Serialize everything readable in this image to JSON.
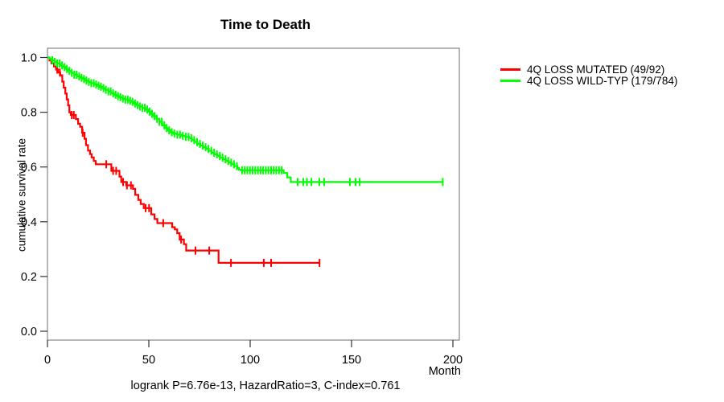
{
  "chart_data": {
    "type": "line",
    "subtype": "kaplan-meier-step-curves",
    "title": "Time to Death",
    "xlabel": "Month",
    "ylabel": "cumulative survival rate",
    "footer": "logrank P=6.76e-13, HazardRatio=3, C-index=0.761",
    "xlim": [
      0,
      203
    ],
    "ylim": [
      0,
      1
    ],
    "grid": false,
    "legend_position": "right",
    "xticks": [
      {
        "value": 0,
        "label": "0"
      },
      {
        "value": 50,
        "label": "50"
      },
      {
        "value": 100,
        "label": "100"
      },
      {
        "value": 150,
        "label": "150"
      },
      {
        "value": 200,
        "label": "200"
      }
    ],
    "yticks": [
      {
        "value": 0.0,
        "label": "0.0"
      },
      {
        "value": 0.2,
        "label": "0.2"
      },
      {
        "value": 0.4,
        "label": "0.4"
      },
      {
        "value": 0.6,
        "label": "0.6"
      },
      {
        "value": 0.8,
        "label": "0.8"
      },
      {
        "value": 1.0,
        "label": "1.0"
      }
    ],
    "series": [
      {
        "name": "4Q LOSS MUTATED (49/92)",
        "color": "#FF0000",
        "events": 49,
        "total": 92,
        "end_month": 134.2,
        "steps": [
          [
            0,
            1.0
          ],
          [
            1,
            0.989
          ],
          [
            2,
            0.978
          ],
          [
            3.2,
            0.967
          ],
          [
            4.2,
            0.956
          ],
          [
            5.2,
            0.945
          ],
          [
            6.3,
            0.935
          ],
          [
            7.3,
            0.912
          ],
          [
            8,
            0.89
          ],
          [
            8.8,
            0.868
          ],
          [
            9.5,
            0.847
          ],
          [
            10.2,
            0.825
          ],
          [
            10.8,
            0.8
          ],
          [
            11.5,
            0.79
          ],
          [
            14,
            0.775
          ],
          [
            15.1,
            0.758
          ],
          [
            16.1,
            0.747
          ],
          [
            17.1,
            0.725
          ],
          [
            18.3,
            0.703
          ],
          [
            19,
            0.68
          ],
          [
            20,
            0.66
          ],
          [
            21,
            0.647
          ],
          [
            21.8,
            0.635
          ],
          [
            22.8,
            0.622
          ],
          [
            23.8,
            0.61
          ],
          [
            31.5,
            0.586
          ],
          [
            35.5,
            0.565
          ],
          [
            36.4,
            0.545
          ],
          [
            38.8,
            0.533
          ],
          [
            42.2,
            0.52
          ],
          [
            43.3,
            0.498
          ],
          [
            44.8,
            0.48
          ],
          [
            46,
            0.465
          ],
          [
            47.5,
            0.45
          ],
          [
            51.2,
            0.427
          ],
          [
            52.8,
            0.41
          ],
          [
            54.2,
            0.395
          ],
          [
            61.5,
            0.38
          ],
          [
            62.8,
            0.372
          ],
          [
            64,
            0.358
          ],
          [
            65.2,
            0.335
          ],
          [
            67.3,
            0.318
          ],
          [
            68.4,
            0.295
          ],
          [
            84.4,
            0.25
          ]
        ],
        "censor_months": [
          4.8,
          6.1,
          12,
          13,
          17.4,
          29,
          32.4,
          33.9,
          37.3,
          39.2,
          41.2,
          48.4,
          50.1,
          57.1,
          65.9,
          73,
          79.8,
          90.5,
          106.7,
          110.3,
          134.2
        ]
      },
      {
        "name": "4Q LOSS WILD-TYP (179/784)",
        "color": "#00FF00",
        "events": 179,
        "total": 784,
        "end_month": 195,
        "steps": [
          [
            0,
            1.0
          ],
          [
            1,
            0.995
          ],
          [
            2,
            0.99
          ],
          [
            3.4,
            0.984
          ],
          [
            4.8,
            0.978
          ],
          [
            6.2,
            0.971
          ],
          [
            7.6,
            0.965
          ],
          [
            9,
            0.958
          ],
          [
            10.4,
            0.951
          ],
          [
            11.8,
            0.944
          ],
          [
            13.2,
            0.937
          ],
          [
            14.6,
            0.931
          ],
          [
            16,
            0.926
          ],
          [
            17.4,
            0.921
          ],
          [
            18.8,
            0.916
          ],
          [
            20.2,
            0.911
          ],
          [
            21.6,
            0.906
          ],
          [
            23,
            0.901
          ],
          [
            24.4,
            0.897
          ],
          [
            25.8,
            0.893
          ],
          [
            27.2,
            0.888
          ],
          [
            28.6,
            0.882
          ],
          [
            30,
            0.876
          ],
          [
            31.4,
            0.869
          ],
          [
            32.8,
            0.864
          ],
          [
            34.2,
            0.859
          ],
          [
            35.6,
            0.855
          ],
          [
            37,
            0.85
          ],
          [
            38.4,
            0.846
          ],
          [
            39.8,
            0.842
          ],
          [
            41.2,
            0.838
          ],
          [
            42.6,
            0.832
          ],
          [
            44,
            0.826
          ],
          [
            45.4,
            0.821
          ],
          [
            46.8,
            0.816
          ],
          [
            48.2,
            0.81
          ],
          [
            49.6,
            0.802
          ],
          [
            51,
            0.794
          ],
          [
            52.4,
            0.786
          ],
          [
            53.8,
            0.776
          ],
          [
            55.2,
            0.765
          ],
          [
            56.6,
            0.752
          ],
          [
            58,
            0.742
          ],
          [
            59.4,
            0.734
          ],
          [
            60.8,
            0.727
          ],
          [
            62.2,
            0.722
          ],
          [
            64,
            0.718
          ],
          [
            66,
            0.714
          ],
          [
            68,
            0.71
          ],
          [
            69.8,
            0.705
          ],
          [
            71.2,
            0.698
          ],
          [
            72.6,
            0.691
          ],
          [
            74,
            0.684
          ],
          [
            75.4,
            0.678
          ],
          [
            76.8,
            0.672
          ],
          [
            78.2,
            0.666
          ],
          [
            79.6,
            0.659
          ],
          [
            81,
            0.652
          ],
          [
            82.4,
            0.646
          ],
          [
            83.8,
            0.64
          ],
          [
            85.2,
            0.634
          ],
          [
            86.6,
            0.628
          ],
          [
            88,
            0.622
          ],
          [
            89.4,
            0.616
          ],
          [
            90.8,
            0.61
          ],
          [
            92.2,
            0.603
          ],
          [
            93.6,
            0.597
          ],
          [
            94.4,
            0.59
          ],
          [
            95.5,
            0.588
          ],
          [
            116.5,
            0.578
          ],
          [
            118.3,
            0.562
          ],
          [
            120,
            0.545
          ]
        ],
        "censor_months": [
          2.4,
          3.6,
          4.8,
          6,
          7.2,
          8.4,
          9.6,
          10.8,
          12,
          13.2,
          14.4,
          15.6,
          16.8,
          18,
          19.2,
          20.4,
          21.6,
          22.8,
          24,
          25.2,
          26.4,
          27.6,
          28.8,
          30,
          31.2,
          32.4,
          33.6,
          34.8,
          36,
          37.2,
          38.4,
          39.6,
          40.8,
          42,
          43.2,
          44.4,
          45.6,
          46.8,
          48,
          49.2,
          50.4,
          51.6,
          52.8,
          54,
          55.2,
          56.4,
          57.6,
          58.8,
          60,
          61.3,
          62.6,
          64,
          65.4,
          66.8,
          68.2,
          69.6,
          71,
          72.4,
          73.8,
          75.2,
          76.6,
          78,
          79.4,
          80.8,
          82.2,
          83.6,
          85,
          86.4,
          87.8,
          89.2,
          90.6,
          92,
          93.4,
          96,
          97.3,
          98.6,
          99.9,
          101.2,
          102.5,
          103.8,
          105.1,
          106.4,
          107.7,
          109,
          110.3,
          111.6,
          112.9,
          114.2,
          115.5,
          123.4,
          126.2,
          128,
          130.2,
          134.1,
          136.5,
          149.2,
          152,
          154,
          195
        ]
      }
    ]
  }
}
